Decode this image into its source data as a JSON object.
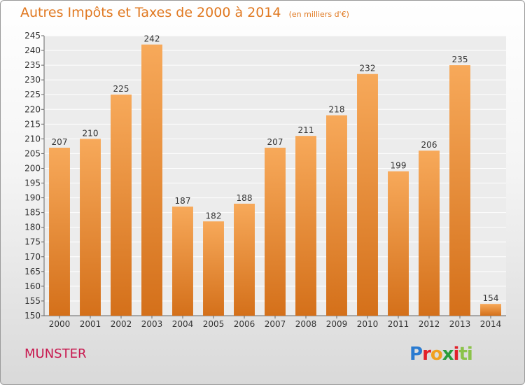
{
  "title": "Autres Impôts et Taxes de 2000 à 2014",
  "title_unit": "(en milliers d'€)",
  "city": "MUNSTER",
  "logo": "Proxiti",
  "colors": {
    "title": "#e07820",
    "city": "#c8194f",
    "bar_light": "#f7a95a",
    "bar_dark": "#d4701a"
  },
  "chart_data": {
    "type": "bar",
    "categories": [
      "2000",
      "2001",
      "2002",
      "2003",
      "2004",
      "2005",
      "2006",
      "2007",
      "2008",
      "2009",
      "2010",
      "2011",
      "2012",
      "2013",
      "2014"
    ],
    "values": [
      207,
      210,
      225,
      242,
      187,
      182,
      188,
      207,
      211,
      218,
      232,
      199,
      206,
      235,
      154
    ],
    "title": "Autres Impôts et Taxes de 2000 à 2014",
    "xlabel": "",
    "ylabel": "",
    "ylim": [
      150,
      245
    ],
    "yticks": [
      150,
      155,
      160,
      165,
      170,
      175,
      180,
      185,
      190,
      195,
      200,
      205,
      210,
      215,
      220,
      225,
      230,
      235,
      240,
      245
    ],
    "grid": true,
    "data_labels": true
  }
}
